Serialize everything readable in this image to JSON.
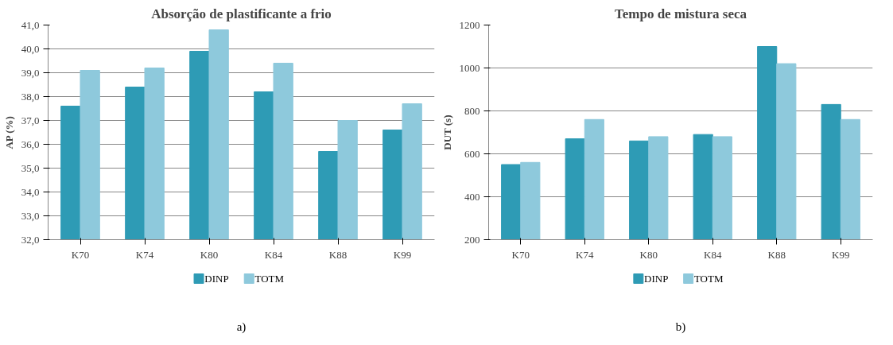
{
  "chart_data": [
    {
      "type": "bar",
      "title": "Absorção de plastificante a frio",
      "ylabel": "AP (%)",
      "categories": [
        "K70",
        "K74",
        "K80",
        "K84",
        "K88",
        "K99"
      ],
      "series": [
        {
          "name": "DINP",
          "color": "#2e9bb5",
          "values": [
            37.6,
            38.4,
            39.9,
            38.2,
            35.7,
            36.6
          ]
        },
        {
          "name": "TOTM",
          "color": "#8ec9dc",
          "values": [
            39.1,
            39.2,
            40.8,
            39.4,
            37.0,
            37.7
          ]
        }
      ],
      "ylim": [
        32,
        41
      ],
      "yticks": [
        {
          "value": 32,
          "label": "32,0"
        },
        {
          "value": 33,
          "label": "33,0"
        },
        {
          "value": 34,
          "label": "34,0"
        },
        {
          "value": 35,
          "label": "35,0"
        },
        {
          "value": 36,
          "label": "36,0"
        },
        {
          "value": 37,
          "label": "37,0"
        },
        {
          "value": 38,
          "label": "38,0"
        },
        {
          "value": 39,
          "label": "39,0"
        },
        {
          "value": 40,
          "label": "40,0"
        },
        {
          "value": 41,
          "label": "41,0"
        }
      ],
      "grid": "y",
      "legend": "bottom",
      "annotations": [
        "a)"
      ]
    },
    {
      "type": "bar",
      "title": "Tempo de mistura seca",
      "ylabel": "DUT (s)",
      "categories": [
        "K70",
        "K74",
        "K80",
        "K84",
        "K88",
        "K99"
      ],
      "series": [
        {
          "name": "DINP",
          "color": "#2e9bb5",
          "values": [
            550,
            670,
            660,
            690,
            1100,
            830
          ]
        },
        {
          "name": "TOTM",
          "color": "#8ec9dc",
          "values": [
            560,
            760,
            680,
            680,
            1020,
            760
          ]
        }
      ],
      "ylim": [
        200,
        1200
      ],
      "yticks": [
        200,
        400,
        600,
        800,
        1000,
        1200
      ],
      "grid": "y",
      "legend": "bottom",
      "annotations": [
        "b)"
      ]
    }
  ]
}
